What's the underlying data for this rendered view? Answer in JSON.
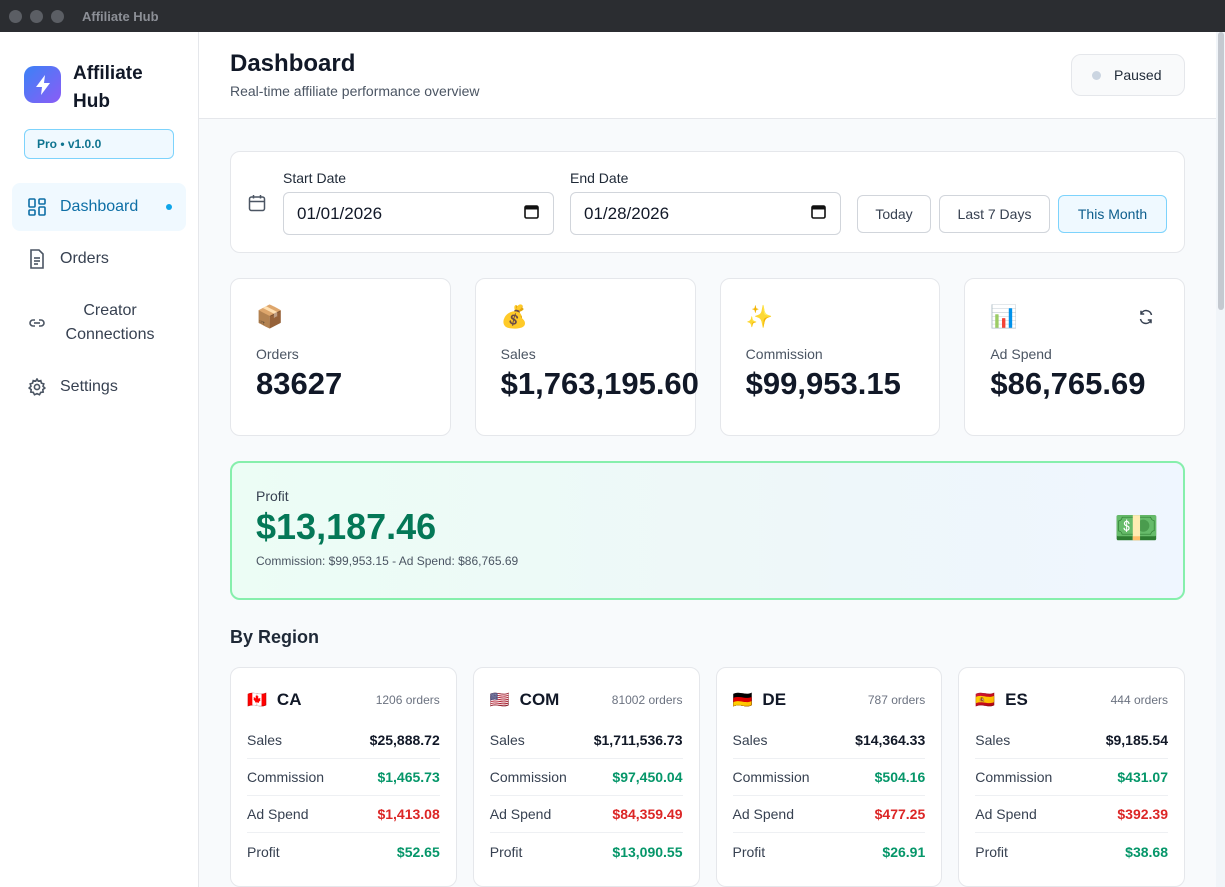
{
  "window": {
    "title": "Affiliate Hub"
  },
  "sidebar": {
    "brand": "Affiliate Hub",
    "version": "Pro • v1.0.0",
    "items": [
      {
        "label": "Dashboard",
        "icon": "dashboard-icon",
        "active": true
      },
      {
        "label": "Orders",
        "icon": "document-icon"
      },
      {
        "label": "Creator Connections",
        "icon": "link-icon"
      },
      {
        "label": "Settings",
        "icon": "gear-icon"
      }
    ]
  },
  "header": {
    "title": "Dashboard",
    "subtitle": "Real-time affiliate performance overview",
    "status": "Paused"
  },
  "filters": {
    "start_label": "Start Date",
    "start_value": "01/01/2026",
    "end_label": "End Date",
    "end_value": "01/28/2026",
    "quick": [
      "Today",
      "Last 7 Days",
      "This Month"
    ],
    "active_quick": "This Month"
  },
  "stats": [
    {
      "label": "Orders",
      "value": "83627",
      "emoji": "📦"
    },
    {
      "label": "Sales",
      "value": "$1,763,195.60",
      "emoji": "💰"
    },
    {
      "label": "Commission",
      "value": "$99,953.15",
      "emoji": "✨"
    },
    {
      "label": "Ad Spend",
      "value": "$86,765.69",
      "emoji": "📊"
    }
  ],
  "profit": {
    "label": "Profit",
    "value": "$13,187.46",
    "formula": "Commission: $99,953.15 - Ad Spend: $86,765.69",
    "emoji": "💵"
  },
  "regions_title": "By Region",
  "regions": [
    {
      "flag": "🇨🇦",
      "code": "CA",
      "orders": "1206 orders",
      "sales": "$25,888.72",
      "commission": "$1,465.73",
      "ad_spend": "$1,413.08",
      "profit": "$52.65"
    },
    {
      "flag": "🇺🇸",
      "code": "COM",
      "orders": "81002 orders",
      "sales": "$1,711,536.73",
      "commission": "$97,450.04",
      "ad_spend": "$84,359.49",
      "profit": "$13,090.55"
    },
    {
      "flag": "🇩🇪",
      "code": "DE",
      "orders": "787 orders",
      "sales": "$14,364.33",
      "commission": "$504.16",
      "ad_spend": "$477.25",
      "profit": "$26.91"
    },
    {
      "flag": "🇪🇸",
      "code": "ES",
      "orders": "444 orders",
      "sales": "$9,185.54",
      "commission": "$431.07",
      "ad_spend": "$392.39",
      "profit": "$38.68"
    }
  ],
  "region_labels": {
    "sales": "Sales",
    "commission": "Commission",
    "ad_spend": "Ad Spend",
    "profit": "Profit"
  },
  "colors": {
    "accent": "#0ea5e9",
    "positive": "#059669",
    "negative": "#dc2626",
    "profit_border": "#86efac"
  }
}
